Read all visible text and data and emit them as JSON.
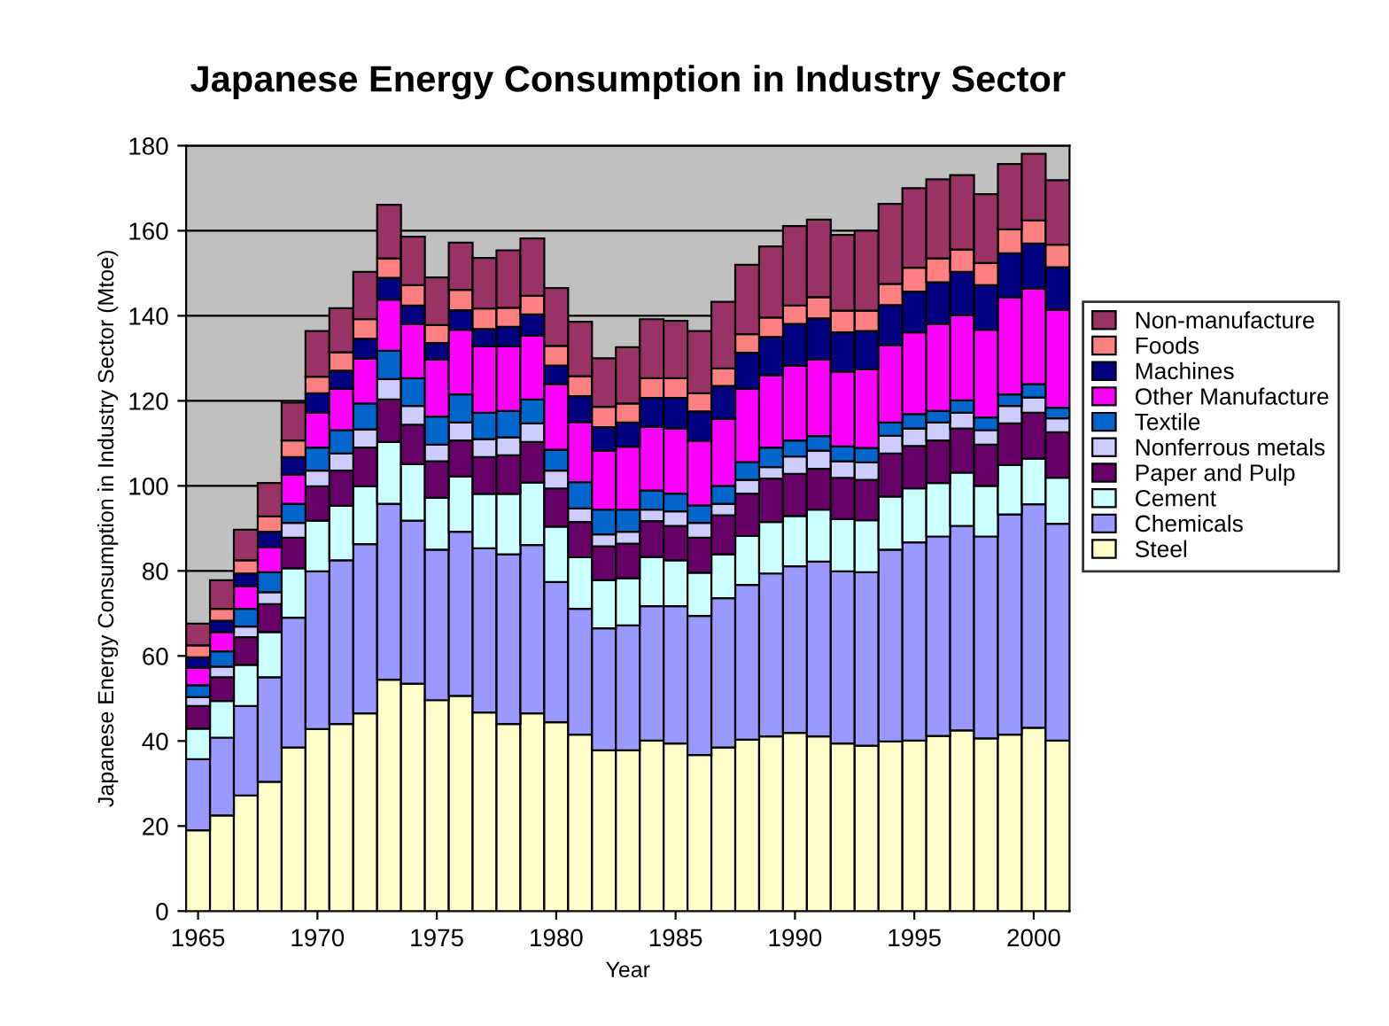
{
  "chart_data": {
    "type": "bar",
    "stacked": true,
    "title": "Japanese Energy Consumption in Industry Sector",
    "xlabel": "Year",
    "ylabel": "Japanese Energy Consumption in Industry Sector (Mtoe)",
    "x": [
      1965,
      1966,
      1967,
      1968,
      1969,
      1970,
      1971,
      1972,
      1973,
      1974,
      1975,
      1976,
      1977,
      1978,
      1979,
      1980,
      1981,
      1982,
      1983,
      1984,
      1985,
      1986,
      1987,
      1988,
      1989,
      1990,
      1991,
      1992,
      1993,
      1994,
      1995,
      1996,
      1997,
      1998,
      1999,
      2000,
      2001
    ],
    "xlim": [
      1964.5,
      2001.5
    ],
    "xticks": [
      1965,
      1970,
      1975,
      1980,
      1985,
      1990,
      1995,
      2000
    ],
    "ylim": [
      0,
      180
    ],
    "yticks": [
      0,
      20,
      40,
      60,
      80,
      100,
      120,
      140,
      160,
      180
    ],
    "grid": "y",
    "legend": "right",
    "series": [
      {
        "name": "Steel",
        "color": "#ffffcc",
        "values": [
          19.0,
          22.5,
          27.2,
          30.4,
          38.5,
          42.8,
          44.0,
          46.5,
          54.4,
          53.5,
          49.6,
          50.6,
          46.7,
          44.0,
          46.5,
          44.4,
          41.5,
          37.8,
          37.8,
          40.1,
          39.4,
          36.7,
          38.5,
          40.3,
          41.1,
          41.9,
          41.1,
          39.4,
          38.9,
          39.9,
          40.1,
          41.2,
          42.5,
          40.6,
          41.5,
          43.1,
          40.1
        ]
      },
      {
        "name": "Chemicals",
        "color": "#9999ff",
        "values": [
          16.7,
          18.3,
          21.0,
          24.6,
          30.5,
          37.1,
          38.5,
          39.8,
          41.4,
          38.3,
          35.4,
          38.6,
          38.6,
          39.9,
          39.6,
          33.0,
          29.6,
          28.7,
          29.4,
          31.6,
          32.3,
          32.7,
          35.1,
          36.4,
          38.3,
          39.2,
          41.1,
          40.5,
          40.8,
          45.1,
          46.6,
          46.9,
          48.1,
          47.5,
          51.8,
          52.6,
          51.0
        ]
      },
      {
        "name": "Cement",
        "color": "#ccffff",
        "values": [
          7.2,
          8.6,
          9.7,
          10.6,
          11.6,
          11.9,
          12.8,
          13.6,
          14.5,
          13.3,
          12.2,
          13.0,
          12.8,
          14.2,
          14.7,
          13.0,
          12.1,
          11.3,
          11.1,
          11.6,
          10.8,
          10.2,
          10.3,
          11.5,
          12.1,
          11.8,
          12.2,
          12.3,
          12.2,
          12.5,
          12.7,
          12.6,
          12.5,
          11.9,
          11.6,
          10.7,
          10.8
        ]
      },
      {
        "name": "Paper and Pulp",
        "color": "#660066",
        "values": [
          5.3,
          5.6,
          6.5,
          6.6,
          7.2,
          8.1,
          8.3,
          9.1,
          10.0,
          9.3,
          8.6,
          8.5,
          8.7,
          9.1,
          9.5,
          9.0,
          8.3,
          8.0,
          8.1,
          8.4,
          8.1,
          8.2,
          9.2,
          10.0,
          10.2,
          9.9,
          9.6,
          9.7,
          9.5,
          10.1,
          10.0,
          10.0,
          10.4,
          9.7,
          9.8,
          10.8,
          10.7
        ]
      },
      {
        "name": "Nonferrous metals",
        "color": "#ccccff",
        "values": [
          2.1,
          2.5,
          2.5,
          2.8,
          3.5,
          3.7,
          4.0,
          4.3,
          4.8,
          4.4,
          3.9,
          4.2,
          4.2,
          4.2,
          4.4,
          4.2,
          3.2,
          2.8,
          2.8,
          2.7,
          3.4,
          3.5,
          2.7,
          3.2,
          2.7,
          4.1,
          4.3,
          3.9,
          4.1,
          4.2,
          4.1,
          4.2,
          3.7,
          3.4,
          4.1,
          3.6,
          3.3
        ]
      },
      {
        "name": "Textile",
        "color": "#0066cc",
        "values": [
          2.8,
          3.6,
          4.2,
          4.7,
          4.5,
          5.4,
          5.5,
          6.1,
          6.7,
          6.5,
          6.6,
          6.6,
          6.2,
          6.2,
          5.6,
          4.9,
          6.2,
          5.8,
          5.2,
          4.5,
          4.2,
          4.1,
          4.2,
          4.2,
          4.6,
          3.8,
          3.4,
          3.5,
          3.4,
          3.1,
          3.4,
          2.7,
          2.9,
          3.0,
          2.7,
          3.1,
          2.5
        ]
      },
      {
        "name": "Other Manufacture",
        "color": "#ff00ff",
        "values": [
          4.1,
          4.5,
          5.3,
          5.9,
          6.8,
          8.2,
          9.7,
          10.5,
          12.0,
          12.8,
          13.4,
          15.2,
          15.6,
          15.2,
          15.0,
          15.4,
          14.1,
          13.9,
          14.8,
          15.0,
          15.3,
          15.2,
          15.8,
          17.2,
          17.0,
          17.6,
          18.0,
          17.6,
          18.5,
          18.2,
          19.2,
          20.5,
          20.0,
          20.6,
          22.8,
          22.5,
          23.0
        ]
      },
      {
        "name": "Machines",
        "color": "#000080",
        "values": [
          2.5,
          2.7,
          3.0,
          3.6,
          4.2,
          4.6,
          4.3,
          4.7,
          5.1,
          4.3,
          3.9,
          4.6,
          4.1,
          4.6,
          5.0,
          4.4,
          6.1,
          5.5,
          5.7,
          6.8,
          7.2,
          6.9,
          7.7,
          8.5,
          9.0,
          9.8,
          9.7,
          9.2,
          9.0,
          9.4,
          9.6,
          9.8,
          10.2,
          10.5,
          10.4,
          10.6,
          10.0
        ]
      },
      {
        "name": "Foods",
        "color": "#ff8080",
        "values": [
          2.8,
          2.8,
          3.1,
          3.6,
          3.9,
          3.9,
          4.3,
          4.6,
          4.6,
          4.8,
          4.2,
          4.8,
          4.8,
          4.5,
          4.4,
          4.6,
          4.7,
          4.8,
          4.5,
          4.6,
          4.6,
          4.3,
          4.1,
          4.4,
          4.6,
          4.3,
          5.0,
          5.1,
          4.8,
          5.0,
          5.6,
          5.6,
          5.3,
          5.2,
          5.6,
          5.4,
          5.3
        ]
      },
      {
        "name": "Non-manufacture",
        "color": "#993366",
        "values": [
          5.1,
          6.7,
          7.2,
          7.9,
          8.9,
          10.7,
          10.4,
          11.1,
          12.6,
          11.4,
          11.2,
          11.1,
          11.9,
          13.5,
          13.5,
          13.6,
          12.8,
          11.4,
          13.2,
          13.9,
          13.5,
          14.6,
          15.7,
          16.3,
          16.7,
          18.7,
          18.2,
          17.8,
          18.8,
          18.8,
          18.7,
          18.6,
          17.5,
          16.2,
          15.4,
          15.7,
          15.2
        ]
      }
    ]
  }
}
